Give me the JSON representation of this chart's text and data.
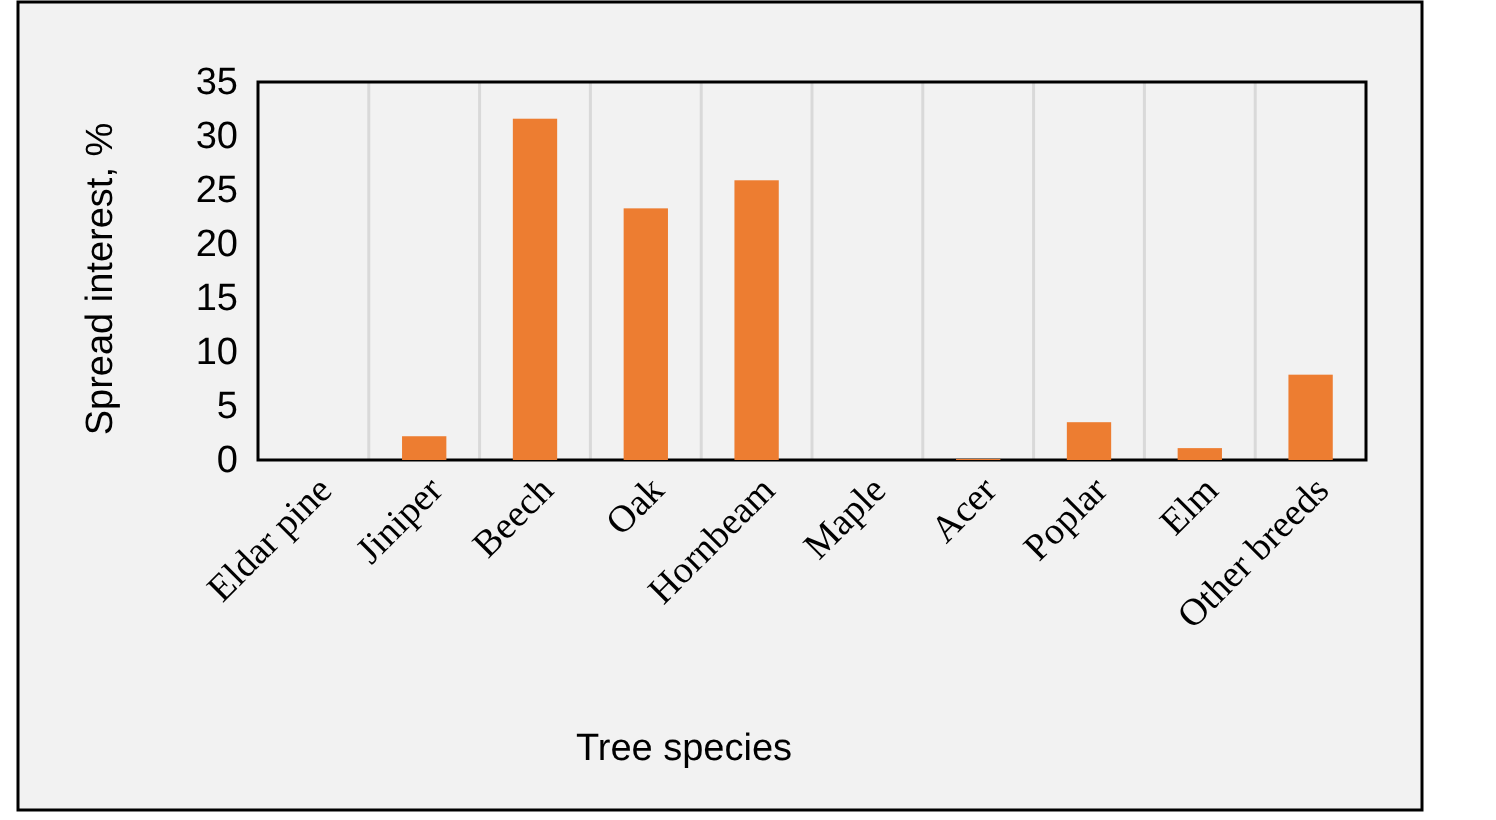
{
  "chart_data": {
    "type": "bar",
    "categories": [
      "Eldar pine",
      "Jiniper",
      "Beech",
      "Oak",
      "Hornbeam",
      "Maple",
      "Acer",
      "Poplar",
      "Elm",
      "Other breeds"
    ],
    "values": [
      0,
      2.2,
      31.6,
      23.3,
      25.9,
      0,
      0.1,
      3.5,
      1.1,
      7.9
    ],
    "color": "#ed7d31",
    "xlabel": "Tree species",
    "ylabel": "Spread interest, %",
    "ylim": [
      0,
      35
    ],
    "yticks": [
      0,
      5,
      10,
      15,
      20,
      25,
      30,
      35
    ],
    "grid": "x"
  }
}
